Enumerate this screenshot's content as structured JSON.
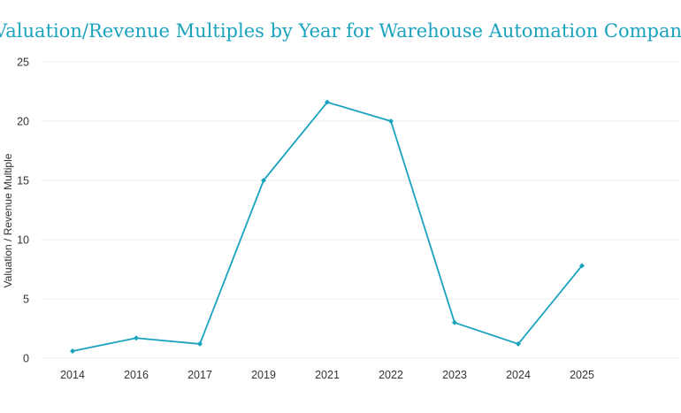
{
  "chart_data": {
    "type": "line",
    "title": "Valuation/Revenue Multiples by Year for Warehouse Automation Companies",
    "xlabel": "",
    "ylabel": "Valuation / Revenue Multiple",
    "categories": [
      "2014",
      "2016",
      "2017",
      "2019",
      "2021",
      "2022",
      "2023",
      "2024",
      "2025"
    ],
    "series": [
      {
        "values": [
          0.6,
          1.7,
          1.2,
          15.0,
          21.6,
          20.0,
          3.0,
          1.2,
          7.8
        ],
        "color": "#1aa3bf"
      }
    ],
    "ylim": [
      0,
      25
    ],
    "yticks": [
      0,
      5,
      10,
      15,
      20,
      25
    ],
    "grid": true,
    "legend": "none"
  }
}
